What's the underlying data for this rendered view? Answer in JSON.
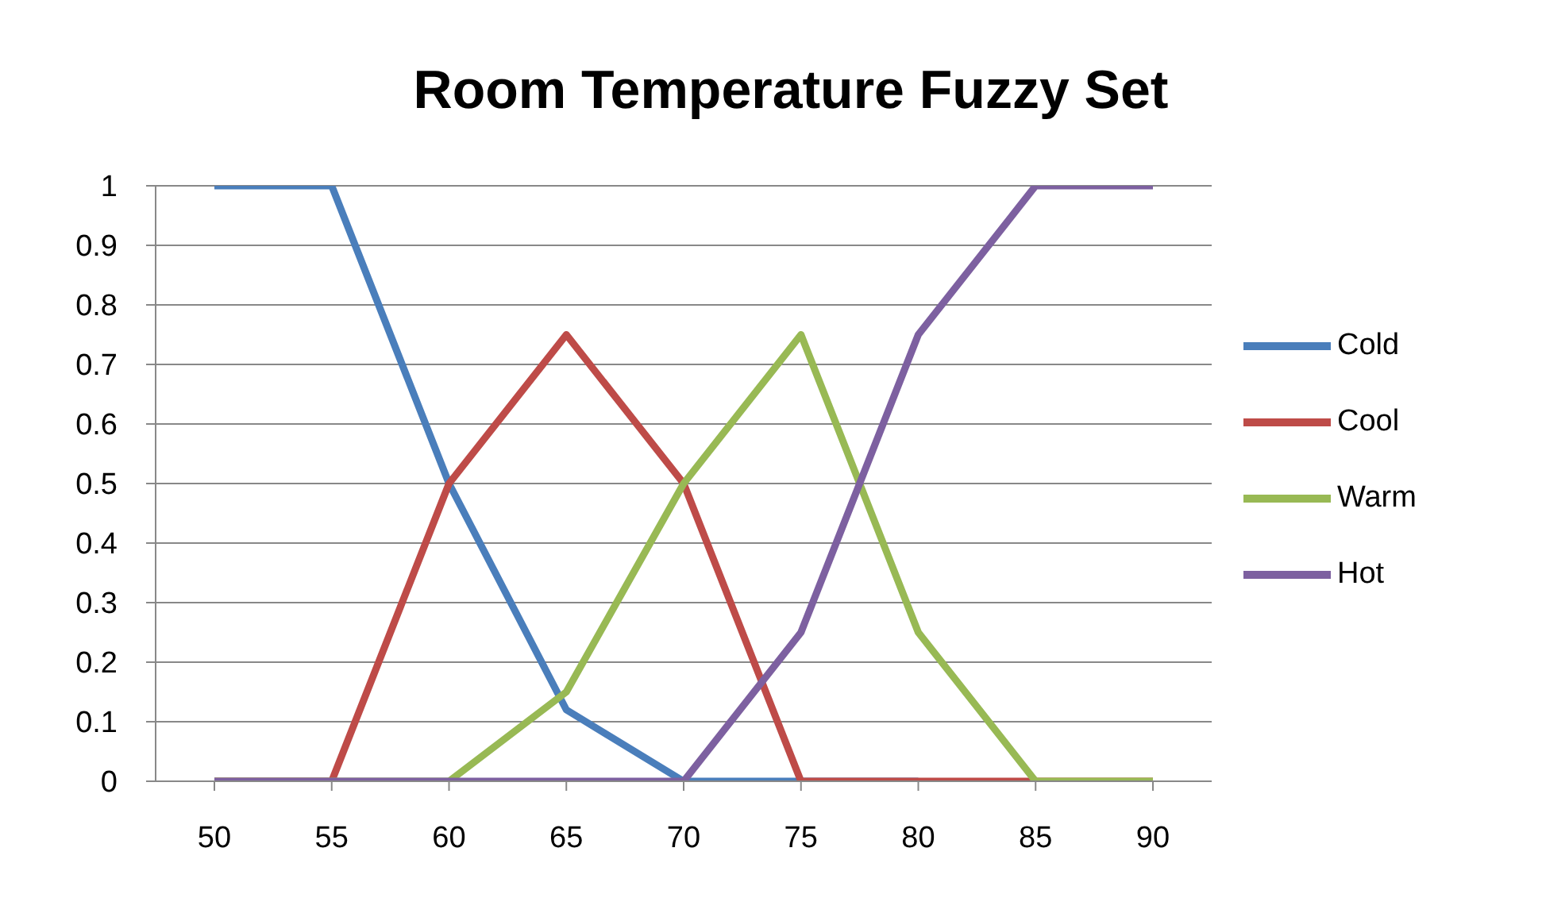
{
  "chart_data": {
    "type": "line",
    "title": "Room Temperature Fuzzy Set",
    "categories": [
      "50",
      "55",
      "60",
      "65",
      "70",
      "75",
      "80",
      "85",
      "90"
    ],
    "series": [
      {
        "name": "Cold",
        "color": "#4a7ebb",
        "values": [
          1,
          1,
          0.5,
          0.12,
          0,
          0,
          0,
          null,
          null
        ]
      },
      {
        "name": "Cool",
        "color": "#be4b48",
        "values": [
          0,
          0,
          0.5,
          0.75,
          0.5,
          0,
          0,
          0,
          0
        ]
      },
      {
        "name": "Warm",
        "color": "#98b954",
        "values": [
          0,
          0,
          0,
          0.15,
          0.5,
          0.75,
          0.25,
          0,
          0
        ]
      },
      {
        "name": "Hot",
        "color": "#7d60a0",
        "values": [
          0,
          0,
          0,
          0,
          0,
          0.25,
          0.75,
          1,
          1
        ]
      }
    ],
    "ylim": [
      0,
      1
    ],
    "yticks": [
      0,
      0.1,
      0.2,
      0.3,
      0.4,
      0.5,
      0.6,
      0.7,
      0.8,
      0.9,
      1
    ],
    "grid": "y",
    "legend": "right",
    "marker": "none",
    "line_style": "solid"
  }
}
